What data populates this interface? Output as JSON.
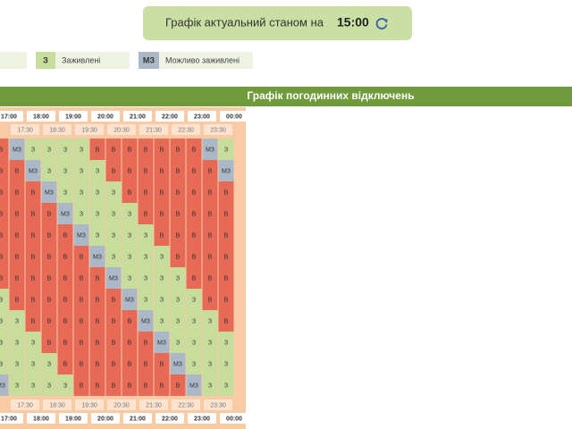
{
  "banner": {
    "text": "Графік актуальний станом на",
    "time": "15:00"
  },
  "legend": [
    {
      "label": "і"
    },
    {
      "code": "З",
      "label": "Заживлені"
    },
    {
      "code": "МЗ",
      "label": "Можливо заживлені"
    }
  ],
  "table": {
    "title": "Графік погодинних відключень",
    "hours": [
      "17:00",
      "18:00",
      "19:00",
      "20:00",
      "21:00",
      "22:00",
      "23:00",
      "00:00"
    ],
    "half_hours": [
      "17:30",
      "18:30",
      "19:30",
      "20:30",
      "21:30",
      "22:30",
      "23:30"
    ],
    "rows": [
      [
        "В",
        "МЗ",
        "З",
        "З",
        "З",
        "З",
        "В",
        "В",
        "В",
        "В",
        "В",
        "В",
        "В",
        "МЗ",
        "З"
      ],
      [
        "В",
        "В",
        "МЗ",
        "З",
        "З",
        "З",
        "З",
        "В",
        "В",
        "В",
        "В",
        "В",
        "В",
        "В",
        "МЗ"
      ],
      [
        "В",
        "В",
        "В",
        "МЗ",
        "З",
        "З",
        "З",
        "З",
        "В",
        "В",
        "В",
        "В",
        "В",
        "В",
        "В"
      ],
      [
        "В",
        "В",
        "В",
        "В",
        "МЗ",
        "З",
        "З",
        "З",
        "З",
        "В",
        "В",
        "В",
        "В",
        "В",
        "В"
      ],
      [
        "В",
        "В",
        "В",
        "В",
        "В",
        "МЗ",
        "З",
        "З",
        "З",
        "З",
        "В",
        "В",
        "В",
        "В",
        "В"
      ],
      [
        "В",
        "В",
        "В",
        "В",
        "В",
        "В",
        "МЗ",
        "З",
        "З",
        "З",
        "З",
        "В",
        "В",
        "В",
        "В"
      ],
      [
        "В",
        "В",
        "В",
        "В",
        "В",
        "В",
        "В",
        "МЗ",
        "З",
        "З",
        "З",
        "З",
        "В",
        "В",
        "В"
      ],
      [
        "З",
        "В",
        "В",
        "В",
        "В",
        "В",
        "В",
        "В",
        "МЗ",
        "З",
        "З",
        "З",
        "З",
        "В",
        "В"
      ],
      [
        "З",
        "З",
        "В",
        "В",
        "В",
        "В",
        "В",
        "В",
        "В",
        "МЗ",
        "З",
        "З",
        "З",
        "З",
        "В"
      ],
      [
        "З",
        "З",
        "З",
        "В",
        "В",
        "В",
        "В",
        "В",
        "В",
        "В",
        "МЗ",
        "З",
        "З",
        "З",
        "З"
      ],
      [
        "З",
        "З",
        "З",
        "З",
        "В",
        "В",
        "В",
        "В",
        "В",
        "В",
        "В",
        "МЗ",
        "З",
        "З",
        "З"
      ],
      [
        "МЗ",
        "З",
        "З",
        "З",
        "З",
        "В",
        "В",
        "В",
        "В",
        "В",
        "В",
        "В",
        "МЗ",
        "З",
        "З"
      ]
    ]
  }
}
